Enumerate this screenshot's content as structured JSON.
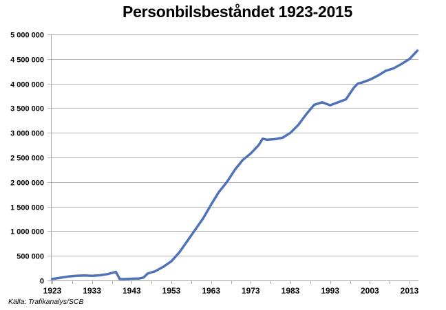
{
  "chart_data": {
    "type": "line",
    "title": "Personbilsbeståndet 1923-2015",
    "xlabel": "",
    "ylabel": "",
    "ylim": [
      0,
      5000000
    ],
    "xlim": [
      1923,
      2015
    ],
    "grid": "horizontal",
    "legend": "none",
    "y_ticks": [
      "0",
      "500 000",
      "1 000 000",
      "1 500 000",
      "2 000 000",
      "2 500 000",
      "3 000 000",
      "3 500 000",
      "4 000 000",
      "4 500 000",
      "5 000 000"
    ],
    "x_ticks": [
      "1923",
      "1933",
      "1943",
      "1953",
      "1963",
      "1973",
      "1983",
      "1993",
      "2003",
      "2013"
    ],
    "series": [
      {
        "name": "Personbilsbestånd",
        "color": "#4f72b8",
        "x": [
          1923,
          1925,
          1927,
          1929,
          1931,
          1933,
          1935,
          1937,
          1939,
          1940,
          1941,
          1943,
          1945,
          1946,
          1947,
          1949,
          1951,
          1953,
          1955,
          1957,
          1959,
          1961,
          1963,
          1965,
          1967,
          1969,
          1971,
          1973,
          1975,
          1976,
          1977,
          1979,
          1981,
          1983,
          1985,
          1987,
          1989,
          1991,
          1993,
          1995,
          1997,
          1999,
          2000,
          2001,
          2003,
          2005,
          2007,
          2009,
          2011,
          2013,
          2015
        ],
        "values": [
          30000,
          55000,
          80000,
          95000,
          100000,
          95000,
          105000,
          130000,
          175000,
          30000,
          28000,
          35000,
          40000,
          60000,
          140000,
          190000,
          280000,
          390000,
          570000,
          800000,
          1030000,
          1260000,
          1540000,
          1800000,
          2000000,
          2250000,
          2450000,
          2580000,
          2750000,
          2880000,
          2860000,
          2870000,
          2900000,
          3000000,
          3160000,
          3380000,
          3570000,
          3620000,
          3560000,
          3620000,
          3680000,
          3920000,
          4000000,
          4020000,
          4080000,
          4160000,
          4260000,
          4310000,
          4400000,
          4500000,
          4670000
        ]
      }
    ]
  },
  "footer": {
    "source": "Källa: Trafikanalys/SCB"
  }
}
